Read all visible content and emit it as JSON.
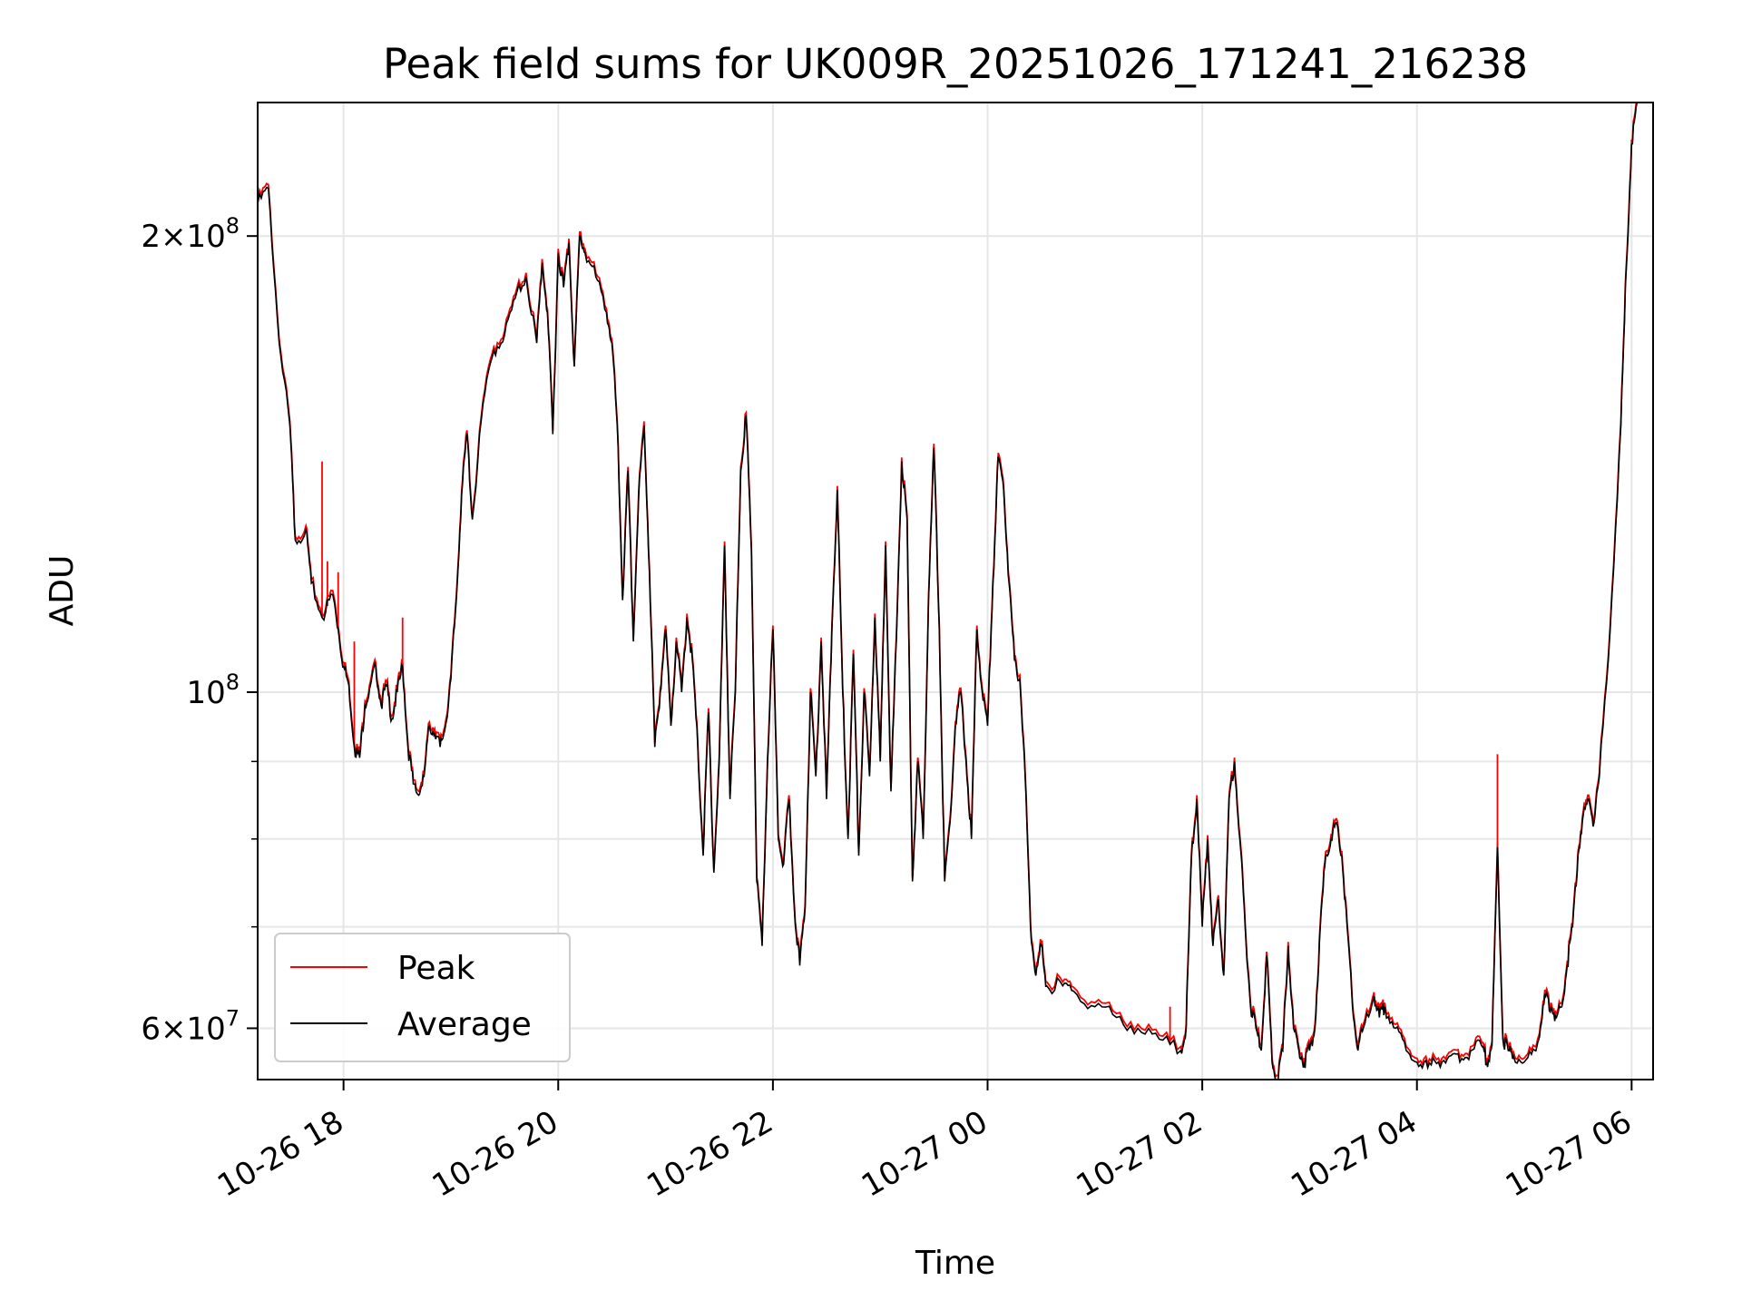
{
  "chart_data": {
    "type": "line",
    "title": "Peak field sums for UK009R_20251026_171241_216238",
    "xlabel": "Time",
    "ylabel": "ADU",
    "yscale": "log",
    "xlim": [
      17.2,
      30.2
    ],
    "ylim": [
      55500000,
      245000000
    ],
    "x_unit": "hours since 2025-10-26 00:00",
    "xticks": [
      {
        "value": 18,
        "label": "10-26 18"
      },
      {
        "value": 20,
        "label": "10-26 20"
      },
      {
        "value": 22,
        "label": "10-26 22"
      },
      {
        "value": 24,
        "label": "10-27 00"
      },
      {
        "value": 26,
        "label": "10-27 02"
      },
      {
        "value": 28,
        "label": "10-27 04"
      },
      {
        "value": 30,
        "label": "10-27 06"
      }
    ],
    "yticks_major": [
      {
        "value": 60000000,
        "base": "6×10",
        "exp": "7"
      },
      {
        "value": 100000000,
        "base": "10",
        "exp": "8"
      },
      {
        "value": 200000000,
        "base": "2×10",
        "exp": "8"
      }
    ],
    "yticks_minor": [
      70000000,
      80000000,
      90000000
    ],
    "grid": true,
    "legend_position": "lower-left",
    "series": [
      {
        "name": "Average",
        "color": "#000000",
        "points": [
          [
            17.2,
            210000000.0
          ],
          [
            17.3,
            215000000.0
          ],
          [
            17.4,
            170000000.0
          ],
          [
            17.5,
            150000000.0
          ],
          [
            17.55,
            126000000.0
          ],
          [
            17.65,
            128000000.0
          ],
          [
            17.7,
            118000000.0
          ],
          [
            17.8,
            112000000.0
          ],
          [
            17.9,
            116000000.0
          ],
          [
            17.95,
            110000000.0
          ],
          [
            18.0,
            104000000.0
          ],
          [
            18.05,
            101000000.0
          ],
          [
            18.1,
            92000000.0
          ],
          [
            18.15,
            90500000.0
          ],
          [
            18.2,
            98000000.0
          ],
          [
            18.25,
            101000000.0
          ],
          [
            18.3,
            104000000.0
          ],
          [
            18.35,
            98000000.0
          ],
          [
            18.4,
            101000000.0
          ],
          [
            18.45,
            96000000.0
          ],
          [
            18.5,
            100000000.0
          ],
          [
            18.55,
            104000000.0
          ],
          [
            18.6,
            92000000.0
          ],
          [
            18.65,
            87000000.0
          ],
          [
            18.7,
            85500000.0
          ],
          [
            18.75,
            88000000.0
          ],
          [
            18.8,
            95000000.0
          ],
          [
            18.85,
            94000000.0
          ],
          [
            18.9,
            92000000.0
          ],
          [
            18.95,
            95000000.0
          ],
          [
            19.0,
            102000000.0
          ],
          [
            19.05,
            115000000.0
          ],
          [
            19.1,
            135000000.0
          ],
          [
            19.15,
            148000000.0
          ],
          [
            19.2,
            130000000.0
          ],
          [
            19.3,
            155000000.0
          ],
          [
            19.4,
            168000000.0
          ],
          [
            19.5,
            172000000.0
          ],
          [
            19.6,
            182000000.0
          ],
          [
            19.7,
            188000000.0
          ],
          [
            19.8,
            170000000.0
          ],
          [
            19.85,
            192000000.0
          ],
          [
            19.9,
            178000000.0
          ],
          [
            19.95,
            148000000.0
          ],
          [
            20.0,
            195000000.0
          ],
          [
            20.05,
            185000000.0
          ],
          [
            20.1,
            198000000.0
          ],
          [
            20.15,
            164000000.0
          ],
          [
            20.2,
            200000000.0
          ],
          [
            20.25,
            195000000.0
          ],
          [
            20.35,
            188000000.0
          ],
          [
            20.45,
            178000000.0
          ],
          [
            20.5,
            170000000.0
          ],
          [
            20.55,
            150000000.0
          ],
          [
            20.6,
            115000000.0
          ],
          [
            20.65,
            140000000.0
          ],
          [
            20.7,
            108000000.0
          ],
          [
            20.75,
            135000000.0
          ],
          [
            20.8,
            150000000.0
          ],
          [
            20.85,
            120000000.0
          ],
          [
            20.9,
            92000000.0
          ],
          [
            20.95,
            100000000.0
          ],
          [
            21.0,
            110000000.0
          ],
          [
            21.05,
            95000000.0
          ],
          [
            21.1,
            108000000.0
          ],
          [
            21.15,
            100000000.0
          ],
          [
            21.2,
            112000000.0
          ],
          [
            21.25,
            105000000.0
          ],
          [
            21.3,
            92000000.0
          ],
          [
            21.35,
            78000000.0
          ],
          [
            21.4,
            97000000.0
          ],
          [
            21.45,
            76000000.0
          ],
          [
            21.5,
            90000000.0
          ],
          [
            21.55,
            125000000.0
          ],
          [
            21.6,
            85000000.0
          ],
          [
            21.65,
            100000000.0
          ],
          [
            21.7,
            140000000.0
          ],
          [
            21.75,
            152000000.0
          ],
          [
            21.8,
            124000000.0
          ],
          [
            21.85,
            75000000.0
          ],
          [
            21.9,
            68000000.0
          ],
          [
            21.95,
            90000000.0
          ],
          [
            22.0,
            110000000.0
          ],
          [
            22.05,
            80000000.0
          ],
          [
            22.1,
            77000000.0
          ],
          [
            22.15,
            85000000.0
          ],
          [
            22.2,
            72000000.0
          ],
          [
            22.25,
            66000000.0
          ],
          [
            22.3,
            72000000.0
          ],
          [
            22.35,
            100000000.0
          ],
          [
            22.4,
            88000000.0
          ],
          [
            22.45,
            108000000.0
          ],
          [
            22.5,
            85000000.0
          ],
          [
            22.55,
            110000000.0
          ],
          [
            22.6,
            136000000.0
          ],
          [
            22.65,
            100000000.0
          ],
          [
            22.7,
            80000000.0
          ],
          [
            22.75,
            106000000.0
          ],
          [
            22.8,
            78000000.0
          ],
          [
            22.85,
            100000000.0
          ],
          [
            22.9,
            88000000.0
          ],
          [
            22.95,
            112000000.0
          ],
          [
            23.0,
            90000000.0
          ],
          [
            23.05,
            125000000.0
          ],
          [
            23.1,
            86000000.0
          ],
          [
            23.15,
            108000000.0
          ],
          [
            23.2,
            142000000.0
          ],
          [
            23.25,
            130000000.0
          ],
          [
            23.3,
            75000000.0
          ],
          [
            23.35,
            90000000.0
          ],
          [
            23.4,
            80000000.0
          ],
          [
            23.45,
            115000000.0
          ],
          [
            23.5,
            145000000.0
          ],
          [
            23.55,
            110000000.0
          ],
          [
            23.6,
            75000000.0
          ],
          [
            23.65,
            82000000.0
          ],
          [
            23.7,
            95000000.0
          ],
          [
            23.75,
            100000000.0
          ],
          [
            23.8,
            90000000.0
          ],
          [
            23.85,
            80000000.0
          ],
          [
            23.9,
            110000000.0
          ],
          [
            23.95,
            100000000.0
          ],
          [
            24.0,
            95000000.0
          ],
          [
            24.05,
            118000000.0
          ],
          [
            24.1,
            143000000.0
          ],
          [
            24.15,
            136000000.0
          ],
          [
            24.2,
            118000000.0
          ],
          [
            24.25,
            105000000.0
          ],
          [
            24.3,
            102000000.0
          ],
          [
            24.35,
            88000000.0
          ],
          [
            24.4,
            70000000.0
          ],
          [
            24.45,
            65000000.0
          ],
          [
            24.5,
            68000000.0
          ],
          [
            24.55,
            64000000.0
          ],
          [
            24.7,
            64000000.0
          ],
          [
            24.8,
            63500000.0
          ],
          [
            25.0,
            62000000.0
          ],
          [
            25.2,
            61000000.0
          ],
          [
            25.4,
            60000000.0
          ],
          [
            25.6,
            59000000.0
          ],
          [
            25.8,
            58000000.0
          ],
          [
            25.85,
            60000000.0
          ],
          [
            25.9,
            78000000.0
          ],
          [
            25.95,
            85000000.0
          ],
          [
            26.0,
            70000000.0
          ],
          [
            26.05,
            80000000.0
          ],
          [
            26.1,
            68000000.0
          ],
          [
            26.15,
            73000000.0
          ],
          [
            26.2,
            65000000.0
          ],
          [
            26.25,
            85000000.0
          ],
          [
            26.3,
            90000000.0
          ],
          [
            26.35,
            80000000.0
          ],
          [
            26.4,
            70000000.0
          ],
          [
            26.45,
            62000000.0
          ],
          [
            26.5,
            60000000.0
          ],
          [
            26.55,
            58000000.0
          ],
          [
            26.6,
            67000000.0
          ],
          [
            26.65,
            57000000.0
          ],
          [
            26.7,
            55500000.0
          ],
          [
            26.75,
            58000000.0
          ],
          [
            26.8,
            68000000.0
          ],
          [
            26.85,
            60000000.0
          ],
          [
            26.9,
            58000000.0
          ],
          [
            26.95,
            57000000.0
          ],
          [
            27.0,
            58000000.0
          ],
          [
            27.05,
            60000000.0
          ],
          [
            27.1,
            70000000.0
          ],
          [
            27.15,
            78000000.0
          ],
          [
            27.2,
            80000000.0
          ],
          [
            27.25,
            82000000.0
          ],
          [
            27.3,
            78000000.0
          ],
          [
            27.35,
            70000000.0
          ],
          [
            27.4,
            62000000.0
          ],
          [
            27.45,
            58000000.0
          ],
          [
            27.5,
            60000000.0
          ],
          [
            27.6,
            63000000.0
          ],
          [
            27.65,
            61000000.0
          ],
          [
            27.7,
            62000000.0
          ],
          [
            27.8,
            60000000.0
          ],
          [
            27.9,
            58000000.0
          ],
          [
            28.0,
            57000000.0
          ],
          [
            28.1,
            56500000.0
          ],
          [
            28.2,
            57000000.0
          ],
          [
            28.3,
            57500000.0
          ],
          [
            28.4,
            57000000.0
          ],
          [
            28.5,
            58000000.0
          ],
          [
            28.6,
            58500000.0
          ],
          [
            28.65,
            57000000.0
          ],
          [
            28.7,
            58500000.0
          ],
          [
            28.75,
            79000000.0
          ],
          [
            28.8,
            59000000.0
          ],
          [
            28.85,
            58000000.0
          ],
          [
            28.9,
            57500000.0
          ],
          [
            29.0,
            57000000.0
          ],
          [
            29.1,
            58000000.0
          ],
          [
            29.15,
            60000000.0
          ],
          [
            29.2,
            63000000.0
          ],
          [
            29.25,
            62000000.0
          ],
          [
            29.3,
            61000000.0
          ],
          [
            29.35,
            62000000.0
          ],
          [
            29.4,
            66000000.0
          ],
          [
            29.45,
            70000000.0
          ],
          [
            29.5,
            78000000.0
          ],
          [
            29.55,
            83000000.0
          ],
          [
            29.6,
            85000000.0
          ],
          [
            29.65,
            82000000.0
          ],
          [
            29.7,
            88000000.0
          ],
          [
            29.8,
            110000000.0
          ],
          [
            29.9,
            150000000.0
          ],
          [
            29.95,
            190000000.0
          ],
          [
            30.0,
            230000000.0
          ],
          [
            30.05,
            245000000.0
          ]
        ]
      },
      {
        "name": "Peak",
        "color": "#ff0000",
        "spikes": [
          [
            17.8,
            142000000.0
          ],
          [
            17.85,
            122000000.0
          ],
          [
            17.95,
            120000000.0
          ],
          [
            18.1,
            108000000.0
          ],
          [
            18.55,
            112000000.0
          ],
          [
            25.7,
            62000000.0
          ],
          [
            28.75,
            91000000.0
          ]
        ]
      }
    ]
  }
}
